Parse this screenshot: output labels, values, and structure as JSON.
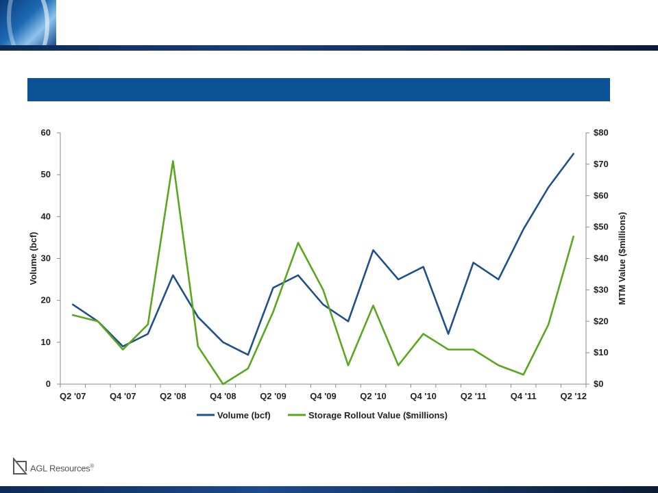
{
  "header": {
    "title": ""
  },
  "brand": {
    "name": "AGL Resources",
    "mark": "®"
  },
  "colors": {
    "volume": "#1f4e8c",
    "storage": "#57a81c",
    "title_bar": "#0b5394",
    "text": "#222222"
  },
  "chart_data": {
    "type": "line",
    "x": [
      "Q2 '07",
      "Q3 '07",
      "Q4 '07",
      "Q1 '08",
      "Q2 '08",
      "Q3 '08",
      "Q4 '08",
      "Q1 '09",
      "Q2 '09",
      "Q3 '09",
      "Q4 '09",
      "Q1 '10",
      "Q2 '10",
      "Q3 '10",
      "Q4 '10",
      "Q1 '11",
      "Q2 '11",
      "Q3 '11",
      "Q4 '11",
      "Q1 '12",
      "Q2 '12"
    ],
    "xtick_labels": [
      "Q2 '07",
      "Q4 '07",
      "Q2 '08",
      "Q4 '08",
      "Q2 '09",
      "Q4 '09",
      "Q2 '10",
      "Q4 '10",
      "Q2 '11",
      "Q4 '11",
      "Q2 '12"
    ],
    "series": [
      {
        "name": "Volume (bcf)",
        "axis": "left",
        "color": "#1f4e8c",
        "values": [
          19,
          15,
          9,
          12,
          26,
          16,
          10,
          7,
          23,
          26,
          19,
          15,
          32,
          25,
          28,
          12,
          29,
          25,
          37,
          47,
          55
        ]
      },
      {
        "name": "Storage Rollout Value ($millions)",
        "axis": "right",
        "color": "#57a81c",
        "values": [
          22,
          20,
          11,
          19,
          71,
          12,
          0,
          5,
          23,
          45,
          30,
          6,
          25,
          6,
          16,
          11,
          11,
          6,
          3,
          19,
          47
        ]
      }
    ],
    "ylabel": "Volume (bcf)",
    "ylim": [
      0,
      60
    ],
    "yticks": [
      "0",
      "10",
      "20",
      "30",
      "40",
      "50",
      "60"
    ],
    "y2label": "MTM Value ($millions)",
    "y2lim": [
      0,
      80
    ],
    "y2ticks": [
      "$0",
      "$10",
      "$20",
      "$30",
      "$40",
      "$50",
      "$60",
      "$70",
      "$80"
    ],
    "grid": false,
    "legend": "bottom"
  }
}
